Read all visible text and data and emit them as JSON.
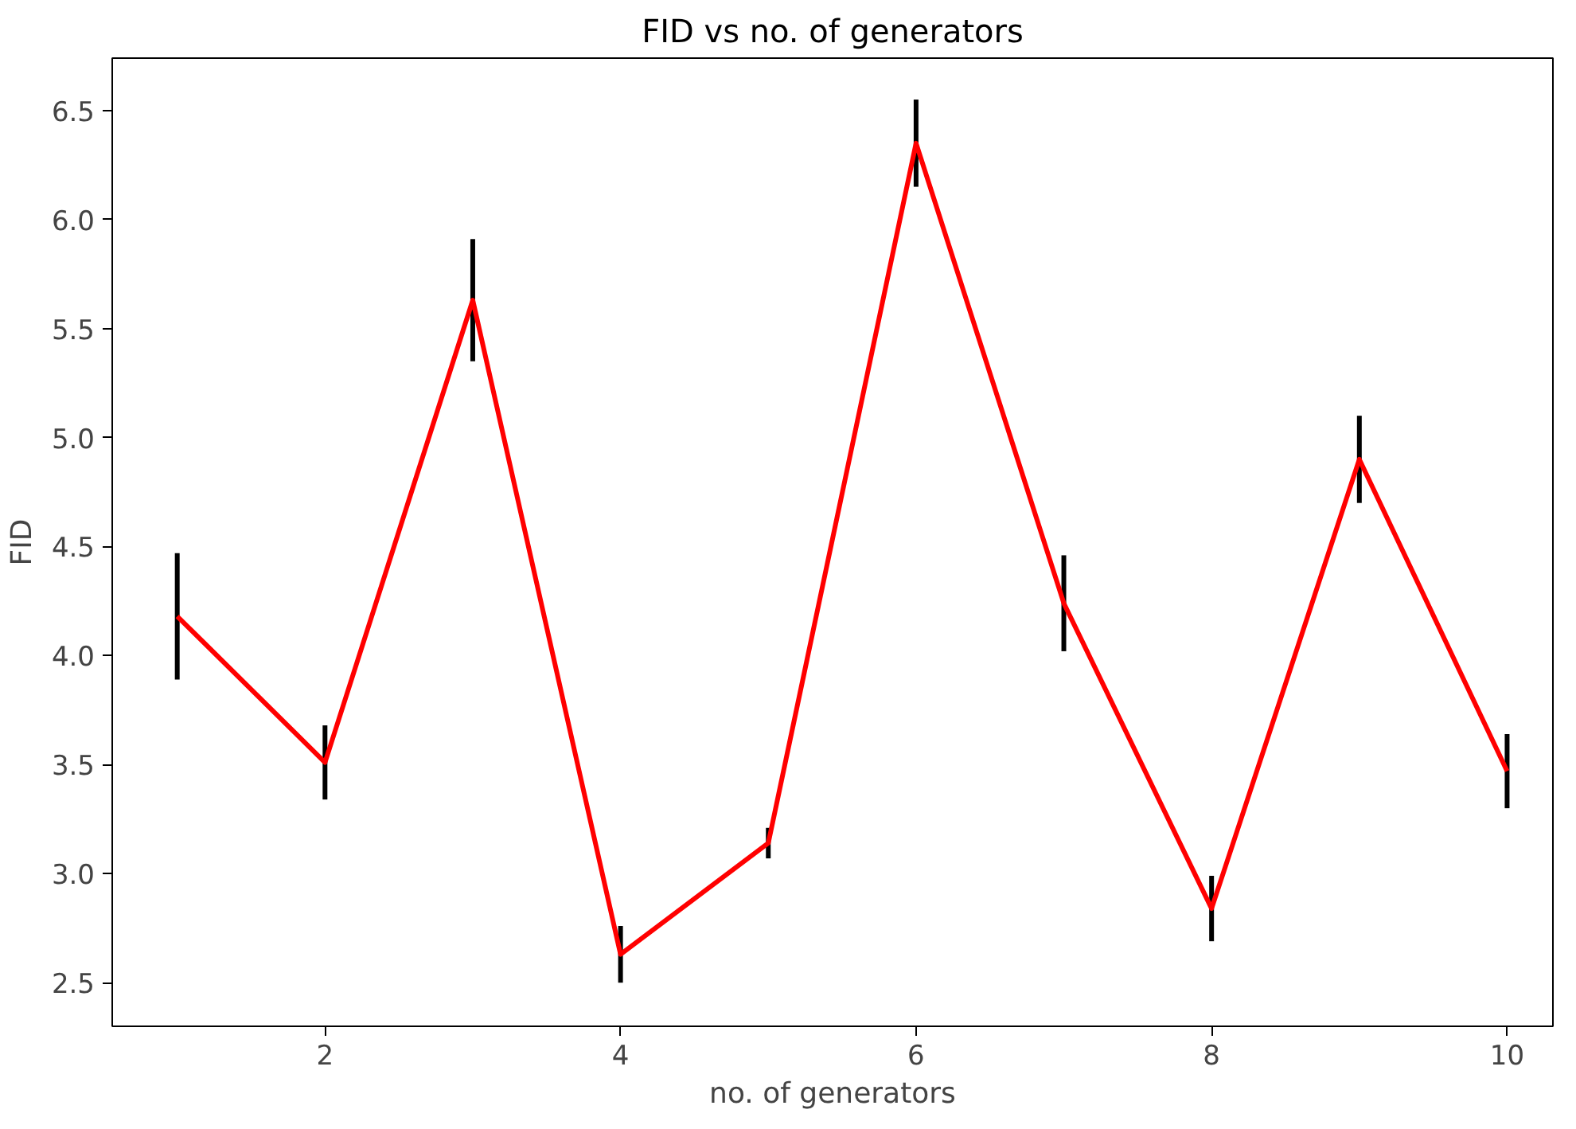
{
  "chart_data": {
    "type": "line",
    "title": "FID vs no. of generators",
    "xlabel": "no. of generators",
    "ylabel": "FID",
    "x": [
      1,
      2,
      3,
      4,
      5,
      6,
      7,
      8,
      9,
      10
    ],
    "series": [
      {
        "color": "#ff0000",
        "values": [
          4.18,
          3.51,
          5.63,
          2.63,
          3.14,
          6.35,
          4.24,
          2.84,
          4.9,
          3.47
        ],
        "errors": [
          0.29,
          0.17,
          0.28,
          0.13,
          0.07,
          0.2,
          0.22,
          0.15,
          0.2,
          0.17
        ]
      }
    ],
    "xlim": [
      0.56,
      10.31
    ],
    "ylim": [
      2.3,
      6.74
    ],
    "xticks": [
      2,
      4,
      6,
      8,
      10
    ],
    "yticks": [
      {
        "value": 2.5,
        "label": "2.5"
      },
      {
        "value": 3.0,
        "label": "3.0"
      },
      {
        "value": 3.5,
        "label": "3.5"
      },
      {
        "value": 4.0,
        "label": "4.0"
      },
      {
        "value": 4.5,
        "label": "4.5"
      },
      {
        "value": 5.0,
        "label": "5.0"
      },
      {
        "value": 5.5,
        "label": "5.5"
      },
      {
        "value": 6.0,
        "label": "6.0"
      },
      {
        "value": 6.5,
        "label": "6.5"
      }
    ],
    "grid": false,
    "marker": "none",
    "line_style": "solid"
  }
}
